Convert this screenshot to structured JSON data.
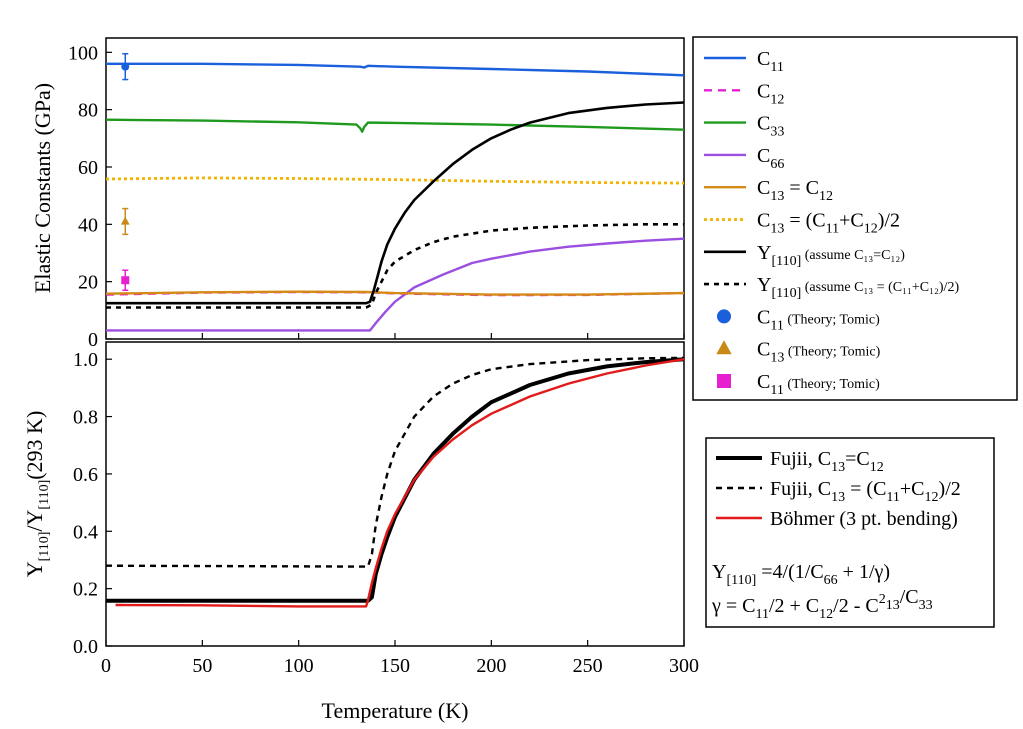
{
  "chart_data": [
    {
      "type": "line",
      "panel": "top",
      "ylabel": "Elastic Constants (GPa)",
      "xlim": [
        0,
        300
      ],
      "ylim": [
        0,
        105
      ],
      "grid": false,
      "legend_position": "right",
      "x_ticks": [
        "0",
        "50",
        "100",
        "150",
        "200",
        "250",
        "300"
      ],
      "y_ticks": [
        "0",
        "20",
        "40",
        "60",
        "80",
        "100"
      ],
      "y_tick_values": [
        0,
        20,
        40,
        60,
        80,
        100
      ],
      "series": [
        {
          "key": "c11",
          "color": "#1a5fdc",
          "dash": "",
          "width": 2.4,
          "legend": {
            "main": "C",
            "sub": "11",
            "rest": "",
            "note": ""
          },
          "points": [
            [
              0,
              96
            ],
            [
              50,
              96
            ],
            [
              100,
              95.6
            ],
            [
              132,
              95
            ],
            [
              134,
              94.7
            ],
            [
              136,
              95.3
            ],
            [
              150,
              95
            ],
            [
              200,
              94.2
            ],
            [
              250,
              93.3
            ],
            [
              300,
              92
            ]
          ]
        },
        {
          "key": "c12",
          "color": "#e81fcf",
          "dash": "8,6",
          "width": 2.4,
          "legend": {
            "main": "C",
            "sub": "12",
            "rest": "",
            "note": ""
          },
          "points": [
            [
              0,
              15.5
            ],
            [
              50,
              16.2
            ],
            [
              100,
              16.4
            ],
            [
              135,
              16.3
            ],
            [
              150,
              15.9
            ],
            [
              200,
              15.3
            ],
            [
              250,
              15.4
            ],
            [
              300,
              16
            ]
          ]
        },
        {
          "key": "c33",
          "color": "#1f9a1f",
          "dash": "",
          "width": 2.4,
          "legend": {
            "main": "C",
            "sub": "33",
            "rest": "",
            "note": ""
          },
          "points": [
            [
              0,
              76.5
            ],
            [
              50,
              76.2
            ],
            [
              100,
              75.6
            ],
            [
              130,
              74.8
            ],
            [
              132,
              73.5
            ],
            [
              133,
              72.3
            ],
            [
              134,
              74
            ],
            [
              136,
              75.5
            ],
            [
              150,
              75.4
            ],
            [
              200,
              74.8
            ],
            [
              250,
              74
            ],
            [
              300,
              73
            ]
          ]
        },
        {
          "key": "c66",
          "color": "#9a4fe0",
          "dash": "",
          "width": 2.4,
          "legend": {
            "main": "C",
            "sub": "66",
            "rest": "",
            "note": ""
          },
          "points": [
            [
              0,
              3
            ],
            [
              137,
              3
            ],
            [
              140,
              5.5
            ],
            [
              145,
              9.5
            ],
            [
              150,
              13
            ],
            [
              160,
              18
            ],
            [
              175,
              22.5
            ],
            [
              190,
              26.5
            ],
            [
              200,
              28
            ],
            [
              220,
              30.5
            ],
            [
              240,
              32.2
            ],
            [
              260,
              33.3
            ],
            [
              280,
              34.3
            ],
            [
              300,
              35
            ]
          ]
        },
        {
          "key": "c13eq",
          "color": "#d48a14",
          "dash": "",
          "width": 2.4,
          "legend": {
            "main": "C",
            "sub": "13",
            "rest": " = C",
            "rest_sub": "12",
            "note": ""
          },
          "points": [
            [
              0,
              15.8
            ],
            [
              50,
              16.3
            ],
            [
              100,
              16.5
            ],
            [
              135,
              16.4
            ],
            [
              150,
              16
            ],
            [
              200,
              15.5
            ],
            [
              250,
              15.5
            ],
            [
              300,
              16
            ]
          ]
        },
        {
          "key": "c13avg",
          "color": "#f5b300",
          "dash": "3,3",
          "width": 2.8,
          "legend": {
            "main": "C",
            "sub": "13",
            "rest": " = (C",
            "rest_sub": "11",
            "rest2": "+C",
            "rest2_sub": "12",
            "rest3": ")/2",
            "note": ""
          },
          "points": [
            [
              0,
              55.8
            ],
            [
              50,
              56.2
            ],
            [
              100,
              56
            ],
            [
              135,
              55.7
            ],
            [
              150,
              55.6
            ],
            [
              200,
              55
            ],
            [
              250,
              54.6
            ],
            [
              300,
              54.4
            ]
          ]
        },
        {
          "key": "y110a",
          "color": "#000000",
          "dash": "",
          "width": 2.6,
          "legend": {
            "main": "Y",
            "sub": "[110]",
            "rest": "",
            "note": "(assume C₁₃=C₁₂)"
          },
          "points": [
            [
              0,
              12.5
            ],
            [
              135,
              12.5
            ],
            [
              137,
              13
            ],
            [
              139,
              17
            ],
            [
              141,
              22
            ],
            [
              143,
              27
            ],
            [
              146,
              33
            ],
            [
              150,
              38.5
            ],
            [
              155,
              44
            ],
            [
              160,
              48.5
            ],
            [
              170,
              55
            ],
            [
              180,
              61
            ],
            [
              190,
              66
            ],
            [
              200,
              70
            ],
            [
              210,
              73
            ],
            [
              220,
              75.5
            ],
            [
              240,
              78.8
            ],
            [
              260,
              80.6
            ],
            [
              280,
              81.8
            ],
            [
              300,
              82.5
            ]
          ]
        },
        {
          "key": "y110b",
          "color": "#000000",
          "dash": "5,5",
          "width": 2.6,
          "legend": {
            "main": "Y",
            "sub": "[110]",
            "rest": "",
            "note": "(assume C₁₃ = (C₁₁+C₁₂)/2)"
          },
          "points": [
            [
              0,
              11
            ],
            [
              135,
              11
            ],
            [
              138,
              12
            ],
            [
              140,
              16
            ],
            [
              143,
              20
            ],
            [
              146,
              24
            ],
            [
              150,
              27
            ],
            [
              160,
              31
            ],
            [
              170,
              33.8
            ],
            [
              180,
              35.7
            ],
            [
              200,
              37.8
            ],
            [
              220,
              38.8
            ],
            [
              250,
              39.6
            ],
            [
              280,
              40
            ],
            [
              300,
              40
            ]
          ]
        }
      ],
      "markers": [
        {
          "key": "theory-c11",
          "shape": "circle",
          "color": "#1a5fdc",
          "x": 10,
          "y": 95,
          "err": 4.5,
          "legend": {
            "main": "C",
            "sub": "11",
            "note": "(Theory; Tomic)"
          }
        },
        {
          "key": "theory-c13",
          "shape": "triangle",
          "color": "#c88a16",
          "x": 10,
          "y": 41,
          "err": 4.5,
          "legend": {
            "main": "C",
            "sub": "13",
            "note": "(Theory; Tomic)"
          }
        },
        {
          "key": "theory-c11-square",
          "shape": "square",
          "color": "#e81fcf",
          "x": 10,
          "y": 20.5,
          "err": 3.5,
          "legend": {
            "main": "C",
            "sub": "11",
            "note": "(Theory; Tomic)"
          }
        }
      ]
    },
    {
      "type": "line",
      "panel": "bottom",
      "xlabel": "Temperature (K)",
      "ylabel_parts": {
        "y1": "Y",
        "s1": "[110]",
        "mid": "/Y",
        "s2": "[110]",
        "end": "(293 K)"
      },
      "xlim": [
        0,
        300
      ],
      "ylim": [
        0,
        1.06
      ],
      "grid": false,
      "legend_position": "right",
      "x_ticks": [
        "0",
        "50",
        "100",
        "150",
        "200",
        "250",
        "300"
      ],
      "y_ticks": [
        "0.0",
        "0.2",
        "0.4",
        "0.6",
        "0.8",
        "1.0"
      ],
      "y_tick_values": [
        0,
        0.2,
        0.4,
        0.6,
        0.8,
        1.0
      ],
      "series": [
        {
          "key": "fujii-eq",
          "color": "#000000",
          "dash": "",
          "width": 4,
          "legend": {
            "text": "Fujii, C",
            "sub": "13",
            "rest": "=C",
            "rest_sub": "12"
          },
          "points": [
            [
              0,
              0.158
            ],
            [
              136,
              0.158
            ],
            [
              138,
              0.17
            ],
            [
              140,
              0.25
            ],
            [
              143,
              0.32
            ],
            [
              146,
              0.38
            ],
            [
              150,
              0.45
            ],
            [
              160,
              0.58
            ],
            [
              170,
              0.67
            ],
            [
              180,
              0.74
            ],
            [
              190,
              0.8
            ],
            [
              200,
              0.85
            ],
            [
              220,
              0.91
            ],
            [
              240,
              0.95
            ],
            [
              260,
              0.975
            ],
            [
              280,
              0.99
            ],
            [
              300,
              1.0
            ]
          ]
        },
        {
          "key": "fujii-avg",
          "color": "#000000",
          "dash": "6,5",
          "width": 2.4,
          "legend": {
            "text": "Fujii, C",
            "sub": "13",
            "rest": " = (C",
            "rest_sub": "11",
            "rest2": "+C",
            "rest2_sub": "12",
            "rest3": ")/2"
          },
          "points": [
            [
              0,
              0.28
            ],
            [
              136,
              0.277
            ],
            [
              138,
              0.32
            ],
            [
              140,
              0.42
            ],
            [
              143,
              0.52
            ],
            [
              146,
              0.6
            ],
            [
              150,
              0.68
            ],
            [
              160,
              0.8
            ],
            [
              170,
              0.87
            ],
            [
              180,
              0.915
            ],
            [
              190,
              0.945
            ],
            [
              200,
              0.965
            ],
            [
              220,
              0.983
            ],
            [
              250,
              0.997
            ],
            [
              280,
              1.003
            ],
            [
              300,
              1.005
            ]
          ]
        },
        {
          "key": "bohmer",
          "color": "#e31a1a",
          "dash": "",
          "width": 2.4,
          "legend": {
            "text": "Böhmer (3 pt. bending)"
          },
          "points": [
            [
              5,
              0.143
            ],
            [
              50,
              0.142
            ],
            [
              100,
              0.138
            ],
            [
              135,
              0.138
            ],
            [
              136,
              0.16
            ],
            [
              138,
              0.22
            ],
            [
              140,
              0.27
            ],
            [
              143,
              0.34
            ],
            [
              146,
              0.4
            ],
            [
              150,
              0.46
            ],
            [
              160,
              0.58
            ],
            [
              170,
              0.66
            ],
            [
              180,
              0.72
            ],
            [
              190,
              0.77
            ],
            [
              200,
              0.81
            ],
            [
              220,
              0.87
            ],
            [
              240,
              0.915
            ],
            [
              260,
              0.95
            ],
            [
              280,
              0.978
            ],
            [
              300,
              1.0
            ]
          ]
        }
      ],
      "annotations": [
        {
          "key": "formula-y110",
          "text": "Y",
          "sub": "[110]",
          "rest": " =4/(1/C",
          "rest_sub": "66",
          "rest2": " + 1/γ)"
        },
        {
          "key": "formula-gamma",
          "text": "γ = C",
          "sub": "11",
          "rest": "/2 + C",
          "rest_sub": "12",
          "rest2": "/2 - C",
          "rest2_sub": "13",
          "sup": "2",
          "rest3": "/C",
          "rest3_sub": "33"
        }
      ]
    }
  ]
}
